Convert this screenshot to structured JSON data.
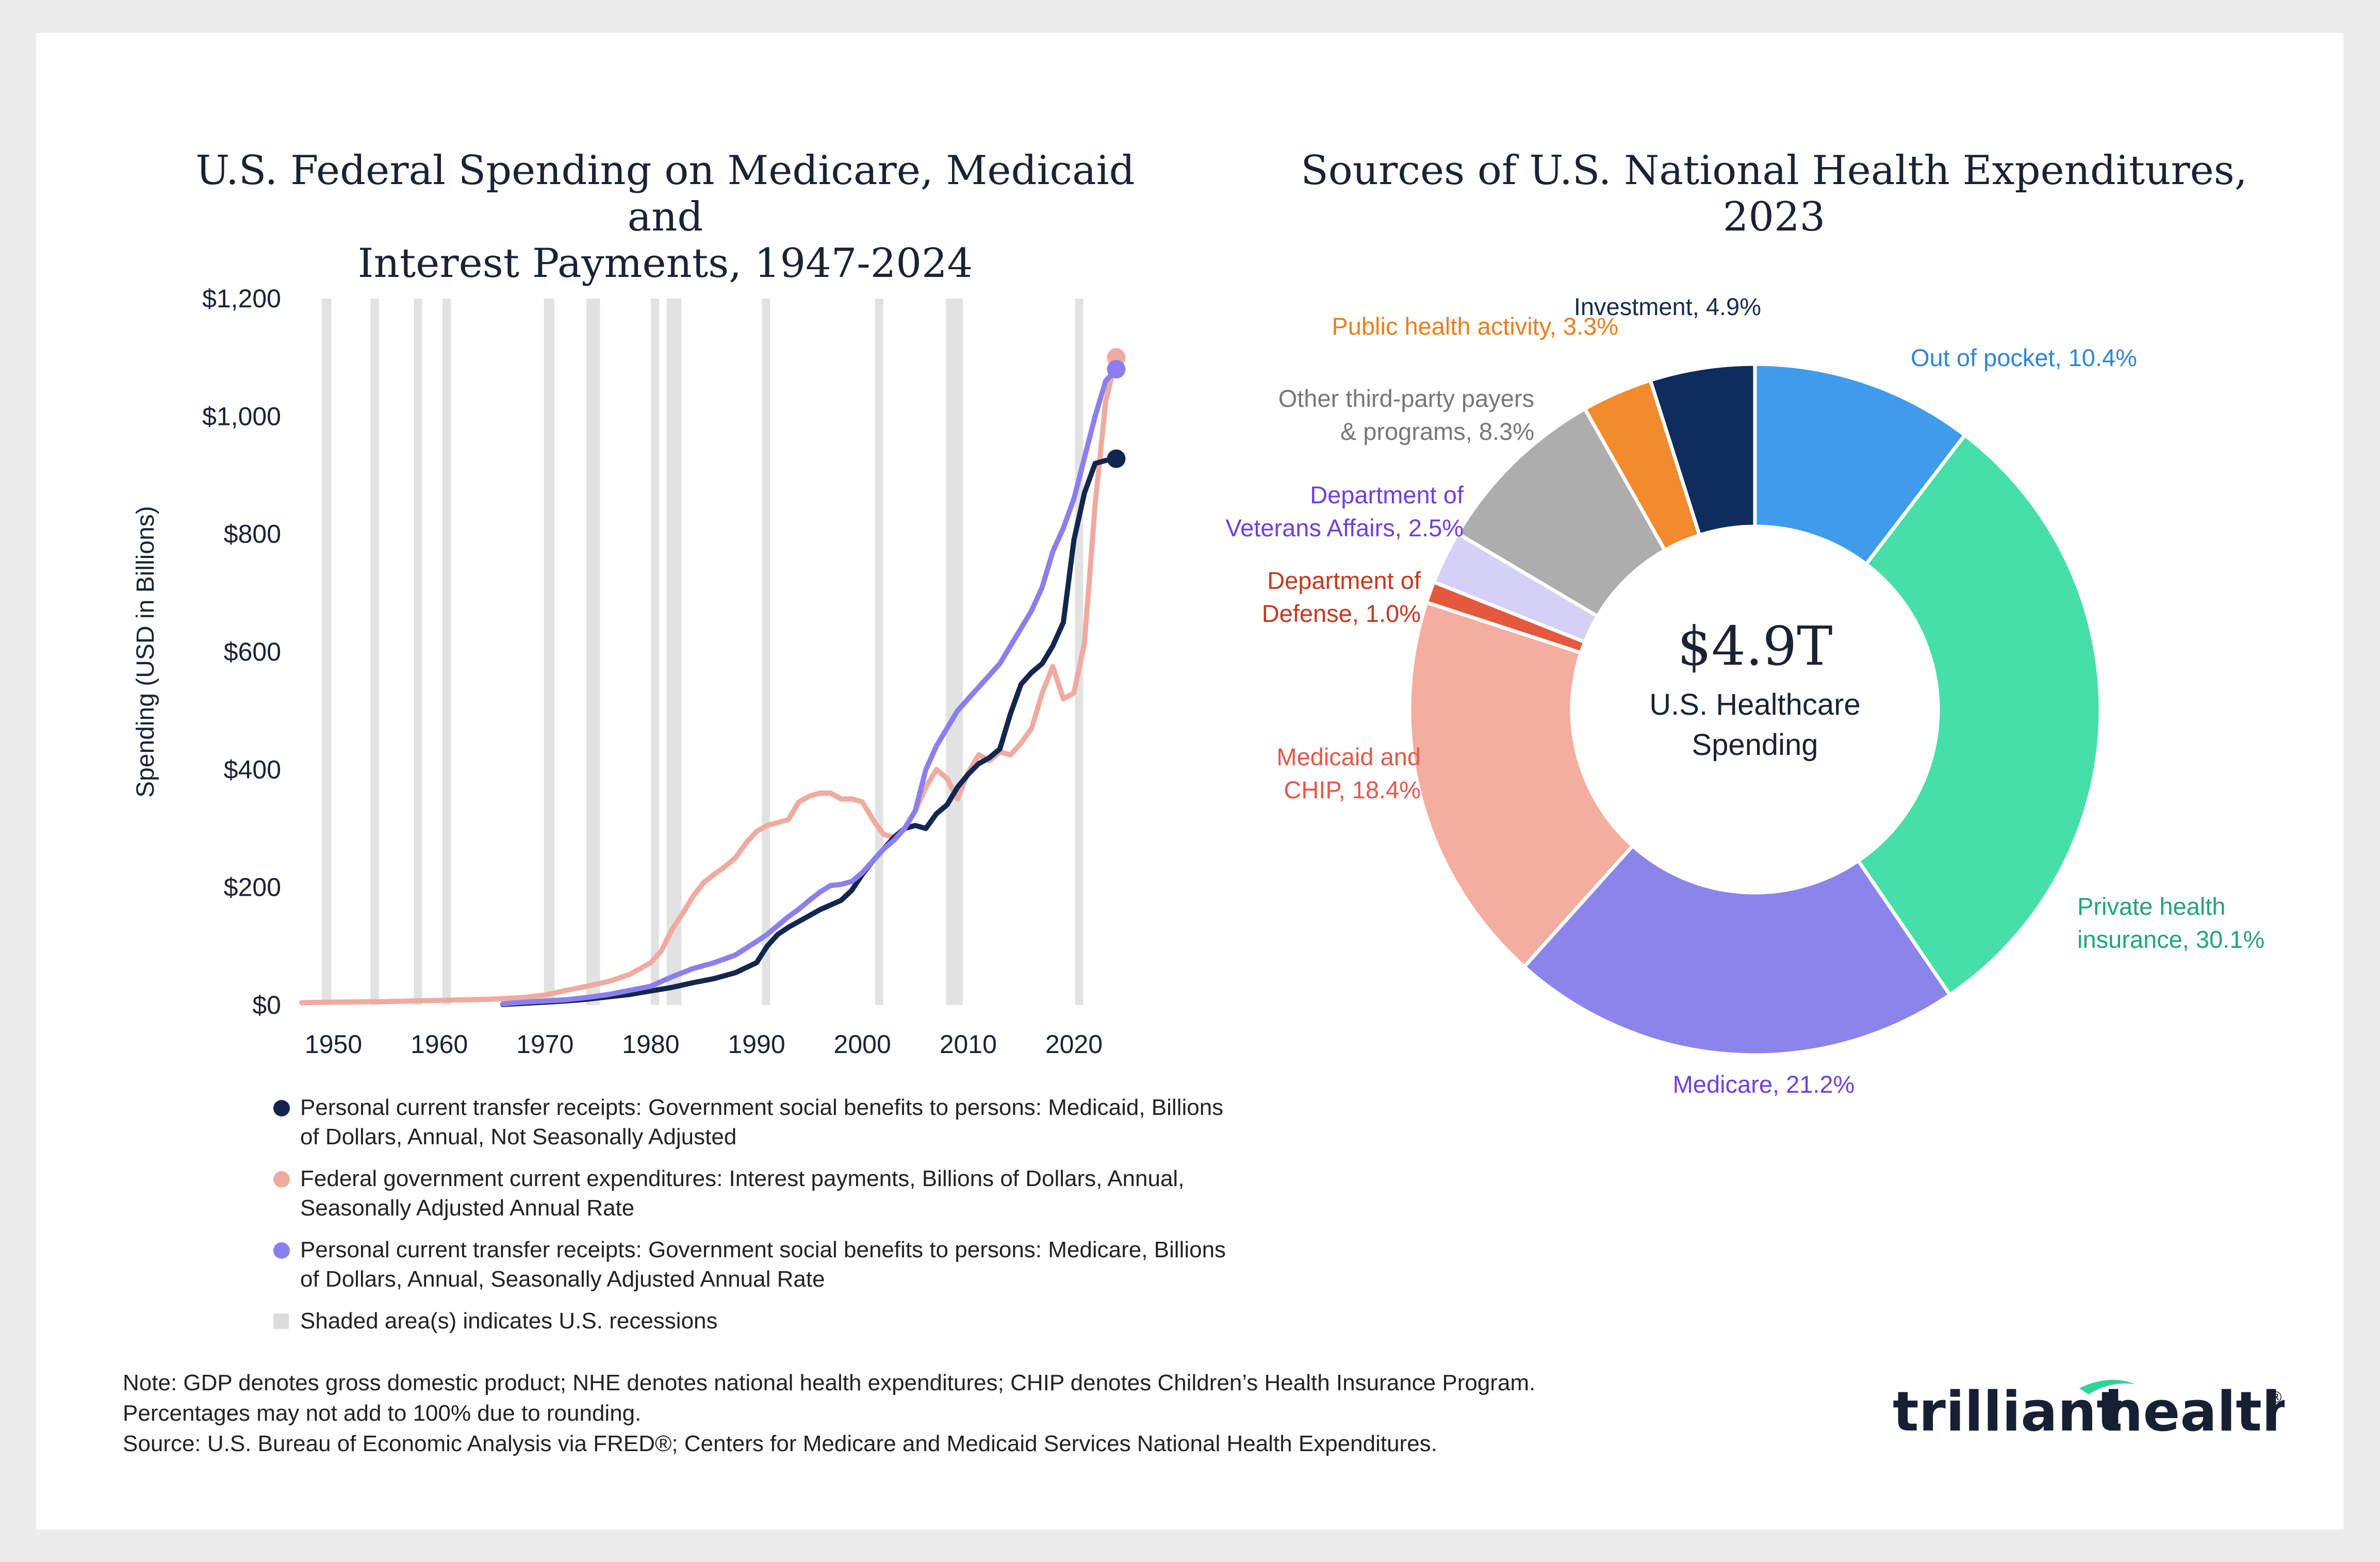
{
  "chart_data": [
    {
      "type": "line",
      "title": "U.S. Federal Spending on Medicare, Medicaid and Interest Payments, 1947-2024",
      "title_lines": [
        "U.S. Federal Spending on Medicare, Medicaid and",
        "Interest Payments, 1947-2024"
      ],
      "xlabel": "",
      "ylabel": "Spending (USD in Billions)",
      "xlim": [
        1947,
        2025
      ],
      "ylim": [
        0,
        1200
      ],
      "x_ticks": [
        1950,
        1960,
        1970,
        1980,
        1990,
        2000,
        2010,
        2020
      ],
      "x_tick_labels": [
        "1950",
        "1960",
        "1970",
        "1980",
        "1990",
        "2000",
        "2010",
        "2020"
      ],
      "y_ticks": [
        0,
        200,
        400,
        600,
        800,
        1000,
        1200
      ],
      "y_tick_labels": [
        "$0",
        "$200",
        "$400",
        "$600",
        "$800",
        "$1,000",
        "$1,200"
      ],
      "grid": false,
      "legend_position": "bottom",
      "recessions": [
        [
          1948.9,
          1949.8
        ],
        [
          1953.5,
          1954.3
        ],
        [
          1957.6,
          1958.3
        ],
        [
          1960.3,
          1961.1
        ],
        [
          1969.9,
          1970.9
        ],
        [
          1973.9,
          1975.2
        ],
        [
          1980.0,
          1980.5
        ],
        [
          1981.5,
          1982.9
        ],
        [
          1990.5,
          1991.2
        ],
        [
          2001.2,
          2001.9
        ],
        [
          2007.9,
          2009.5
        ],
        [
          2020.1,
          2020.5
        ]
      ],
      "recession_label": "Shaded area(s) indicates U.S. recessions",
      "series": [
        {
          "name": "Personal current transfer receipts: Government social benefits to persons: Medicaid, Billions of Dollars, Annual, Not Seasonally Adjusted",
          "color": "#13264f",
          "x": [
            1966,
            1968,
            1970,
            1972,
            1974,
            1976,
            1978,
            1980,
            1982,
            1984,
            1986,
            1988,
            1990,
            1991,
            1992,
            1993,
            1994,
            1995,
            1996,
            1997,
            1998,
            1999,
            2000,
            2001,
            2002,
            2003,
            2004,
            2005,
            2006,
            2007,
            2008,
            2009,
            2010,
            2011,
            2012,
            2013,
            2014,
            2015,
            2016,
            2017,
            2018,
            2019,
            2020,
            2021,
            2022,
            2023,
            2024
          ],
          "y": [
            1,
            3,
            5,
            7,
            10,
            14,
            18,
            24,
            30,
            38,
            45,
            55,
            72,
            100,
            120,
            132,
            142,
            152,
            162,
            170,
            178,
            195,
            222,
            245,
            265,
            285,
            300,
            305,
            300,
            325,
            340,
            370,
            392,
            410,
            420,
            435,
            495,
            545,
            565,
            580,
            610,
            650,
            790,
            870,
            920,
            925,
            928
          ]
        },
        {
          "name": "Federal government current expenditures: Interest payments, Billions of Dollars, Annual, Seasonally Adjusted Annual Rate",
          "color": "#f0aaa0",
          "x": [
            1947,
            1950,
            1955,
            1960,
            1965,
            1968,
            1970,
            1972,
            1974,
            1976,
            1978,
            1980,
            1981,
            1982,
            1983,
            1984,
            1985,
            1986,
            1987,
            1988,
            1989,
            1990,
            1991,
            1992,
            1993,
            1994,
            1995,
            1996,
            1997,
            1998,
            1999,
            2000,
            2001,
            2002,
            2003,
            2004,
            2005,
            2006,
            2007,
            2008,
            2009,
            2010,
            2011,
            2012,
            2013,
            2014,
            2015,
            2016,
            2017,
            2018,
            2019,
            2020,
            2021,
            2022,
            2023,
            2024
          ],
          "y": [
            4,
            5,
            6,
            8,
            10,
            13,
            17,
            25,
            32,
            40,
            52,
            72,
            92,
            128,
            155,
            185,
            208,
            222,
            235,
            250,
            275,
            295,
            305,
            310,
            315,
            345,
            355,
            360,
            360,
            350,
            350,
            345,
            315,
            290,
            285,
            300,
            330,
            370,
            400,
            385,
            350,
            395,
            425,
            415,
            430,
            425,
            445,
            470,
            530,
            575,
            520,
            530,
            615,
            850,
            1025,
            1100
          ]
        },
        {
          "name": "Personal current transfer receipts: Government social benefits to persons: Medicare, Billions of Dollars, Annual, Seasonally Adjusted Annual Rate",
          "color": "#8b7ff0",
          "x": [
            1966,
            1968,
            1970,
            1972,
            1974,
            1976,
            1978,
            1980,
            1982,
            1984,
            1986,
            1988,
            1990,
            1991,
            1992,
            1993,
            1994,
            1995,
            1996,
            1997,
            1998,
            1999,
            2000,
            2001,
            2002,
            2003,
            2004,
            2005,
            2006,
            2007,
            2008,
            2009,
            2010,
            2011,
            2012,
            2013,
            2014,
            2015,
            2016,
            2017,
            2018,
            2019,
            2020,
            2021,
            2022,
            2023,
            2024
          ],
          "y": [
            2,
            5,
            7,
            9,
            13,
            18,
            25,
            32,
            48,
            62,
            72,
            85,
            108,
            120,
            135,
            150,
            163,
            178,
            192,
            203,
            205,
            210,
            225,
            245,
            265,
            280,
            300,
            330,
            400,
            440,
            470,
            500,
            520,
            540,
            560,
            580,
            610,
            640,
            670,
            710,
            770,
            810,
            860,
            930,
            1000,
            1060,
            1080
          ]
        }
      ],
      "end_points": [
        {
          "series": 0,
          "x": 2024,
          "y": 928
        },
        {
          "series": 1,
          "x": 2024,
          "y": 1100
        },
        {
          "series": 2,
          "x": 2024,
          "y": 1080
        }
      ]
    },
    {
      "type": "pie",
      "title": "Sources of U.S. National Health Expenditures, 2023",
      "center_value": "$4.9T",
      "center_label": [
        "U.S. Healthcare",
        "Spending"
      ],
      "labels": [
        "Out of pocket",
        "Private health insurance",
        "Medicare",
        "Medicaid and CHIP",
        "Department of Defense",
        "Department of Veterans Affairs",
        "Other third-party payers & programs",
        "Public health activity",
        "Investment"
      ],
      "values": [
        10.4,
        30.1,
        21.2,
        18.4,
        1.0,
        2.5,
        8.3,
        3.3,
        4.9
      ],
      "colors": [
        "#3f9ceb",
        "#46dfa7",
        "#8c84eb",
        "#f3aea0",
        "#e4593d",
        "#d4d0f6",
        "#adadad",
        "#f28b2d",
        "#0f2c5e"
      ],
      "label_texts": [
        [
          "Out of pocket, 10.4%"
        ],
        [
          "Private health",
          "insurance, 30.1%"
        ],
        [
          "Medicare, 21.2%"
        ],
        [
          "Medicaid and",
          "CHIP, 18.4%"
        ],
        [
          "Department of",
          "Defense, 1.0%"
        ],
        [
          "Department of",
          "Veterans Affairs, 2.5%"
        ],
        [
          "Other third-party payers",
          "& programs, 8.3%"
        ],
        [
          "Public health activity, 3.3%"
        ],
        [
          "Investment, 4.9%"
        ]
      ],
      "label_colors": [
        "#2e86d8",
        "#21a47a",
        "#6c3fe6",
        "#e2584a",
        "#c4381f",
        "#6c3fe6",
        "#777777",
        "#ec7e1b",
        "#172b52"
      ]
    }
  ],
  "notes": {
    "line1": "Note: GDP denotes gross domestic product; NHE denotes national health expenditures; CHIP denotes Children’s Health Insurance Program.",
    "line2": "Percentages may not add to 100% due to rounding.",
    "line3": "Source: U.S. Bureau of Economic Analysis via FRED®; Centers for Medicare and Medicaid Services National Health Expenditures."
  },
  "logo": {
    "text_left": "trilliant",
    "text_right": "health",
    "mark": "®",
    "accent_color": "#2fd39a"
  }
}
